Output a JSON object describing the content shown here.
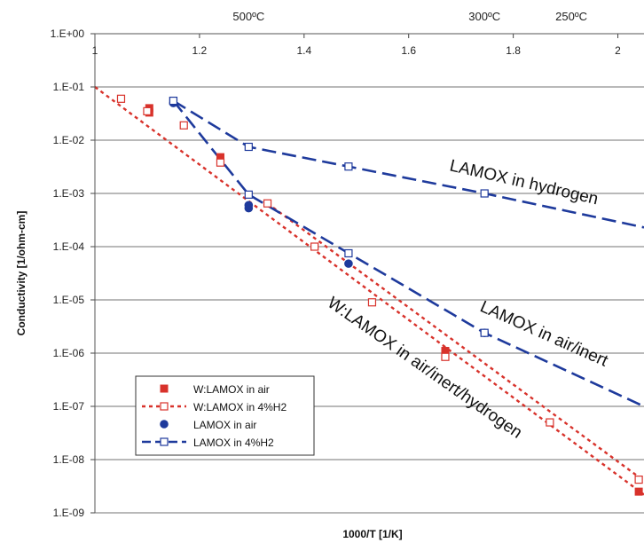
{
  "chart_data": {
    "type": "scatter",
    "title": "",
    "xlabel": "1000/T [1/K]",
    "ylabel": "Conductivity [1/ohm-cm]",
    "xlim": [
      1,
      2.05
    ],
    "ylim": [
      1e-09,
      1
    ],
    "y_scale": "log",
    "grid": "horizontal",
    "x_ticks": [
      "1",
      "1.2",
      "1.4",
      "1.6",
      "1.8",
      "2"
    ],
    "y_ticks": [
      "1.E+00",
      "1.E-01",
      "1.E-02",
      "1.E-03",
      "1.E-04",
      "1.E-05",
      "1.E-06",
      "1.E-07",
      "1.E-08",
      "1.E-09"
    ],
    "top_axis_labels": [
      {
        "label": "500ºC",
        "x": 1.294
      },
      {
        "label": "300ºC",
        "x": 1.745
      },
      {
        "label": "250ºC",
        "x": 1.911
      }
    ],
    "legend_position": "lower-left",
    "series": [
      {
        "name": "W:LAMOX in air",
        "style": "filled-square",
        "color": "#d8322b",
        "x": [
          1.104,
          1.104,
          1.24,
          1.24,
          1.42,
          1.67,
          1.67,
          2.04
        ],
        "y": [
          0.04,
          0.033,
          0.0048,
          0.004,
          0.0001,
          1.1e-06,
          9e-07,
          2.5e-09
        ]
      },
      {
        "name": "W:LAMOX in 4%H2",
        "style": "dotted-line-open-square",
        "color": "#d8322b",
        "x": [
          1.05,
          1.1,
          1.17,
          1.24,
          1.33,
          1.42,
          1.53,
          1.67,
          1.87,
          2.04
        ],
        "y": [
          0.06,
          0.035,
          0.019,
          0.0038,
          0.00065,
          0.0001,
          9e-06,
          8.5e-07,
          5e-08,
          4.2e-09
        ]
      },
      {
        "name": "LAMOX in air",
        "style": "filled-circle",
        "color": "#1e3a9c",
        "x": [
          1.15,
          1.294,
          1.294,
          1.485,
          1.745
        ],
        "y": [
          0.05,
          0.0006,
          0.00053,
          4.8e-05,
          2.4e-06
        ]
      },
      {
        "name": "LAMOX in 4%H2",
        "style": "dashed-line-open-square",
        "color": "#1e3a9c",
        "x": [
          1.15,
          1.294,
          1.485,
          1.745
        ],
        "y": [
          0.055,
          0.00095,
          7.5e-05,
          2.4e-06
        ]
      },
      {
        "name": "LAMOX in 4%H2",
        "style": "dashed-line-open-square",
        "color": "#1e3a9c",
        "x": [
          1.15,
          1.294,
          1.485,
          1.745
        ],
        "y": [
          0.055,
          0.0075,
          0.0032,
          0.001
        ]
      }
    ],
    "fit_lines": [
      {
        "color": "#d8322b",
        "dash": "dotted",
        "x": [
          1.0,
          2.05
        ],
        "y": [
          0.1,
          2.2e-09
        ]
      },
      {
        "color": "#d8322b",
        "dash": "dotted",
        "x": [
          1.33,
          2.05
        ],
        "y": [
          0.00065,
          4e-09
        ]
      },
      {
        "color": "#1e3a9c",
        "dash": "dashed",
        "x": [
          1.15,
          1.294,
          1.745,
          2.05
        ],
        "y": [
          0.055,
          0.00095,
          2.4e-06,
          1e-07
        ]
      },
      {
        "color": "#1e3a9c",
        "dash": "dashed",
        "x": [
          1.15,
          1.294,
          1.485,
          1.745,
          2.05
        ],
        "y": [
          0.055,
          0.0075,
          0.0032,
          0.001,
          0.00023
        ]
      }
    ],
    "annotations": [
      {
        "text": "LAMOX in hydrogen"
      },
      {
        "text": "LAMOX in air/inert"
      },
      {
        "text": "W:LAMOX in air/inert/hydrogen"
      }
    ]
  }
}
